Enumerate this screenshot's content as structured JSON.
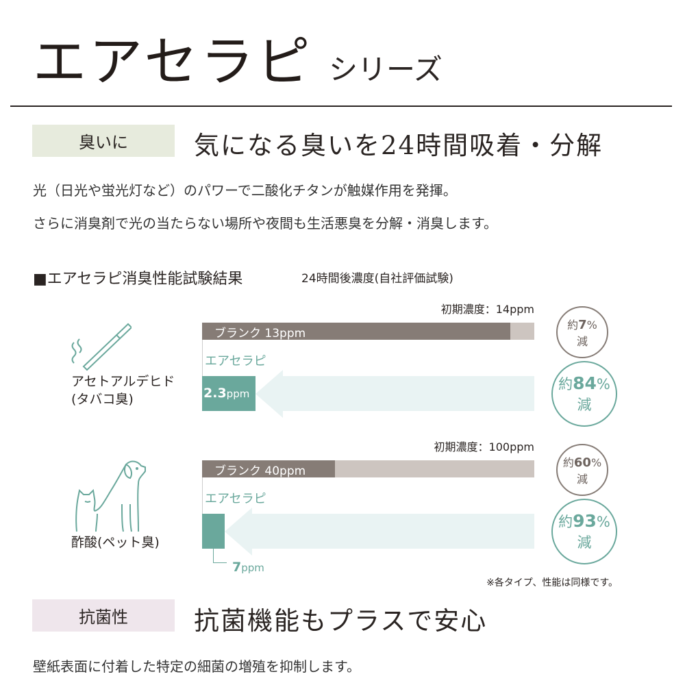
{
  "title": "エアセラピ",
  "title_suffix": "シリーズ",
  "section1": {
    "tag": "臭いに",
    "headline": "気になる臭いを24時間吸着・分解",
    "body": [
      "光（日光や蛍光灯など）のパワーで二酸化チタンが触媒作用を発揮。",
      "さらに消臭剤で光の当たらない場所や夜間も生活悪臭を分解・消臭します。"
    ]
  },
  "test": {
    "heading": "■エアセラピ消臭性能試験結果",
    "subheading": "24時間後濃度(自社評価試験)",
    "note": "※各タイプ、性能は同様です。",
    "items": [
      {
        "name": "アセトアルデヒド",
        "name_sub": "(タバコ臭)",
        "icon": "cigarette-icon",
        "initial": "初期濃度：14ppm",
        "initial_ppm": 14,
        "blank_label": "ブランク 13ppm",
        "blank_ppm": 13,
        "product_label": "エアセラピ",
        "product_value": "2.3",
        "product_unit": "ppm",
        "product_ppm": 2.3,
        "blank_reduction": {
          "prefix": "約",
          "value": "7",
          "unit": "%",
          "suffix": "減"
        },
        "product_reduction": {
          "prefix": "約",
          "value": "84",
          "unit": "%",
          "suffix": "減"
        }
      },
      {
        "name": "酢酸",
        "name_sub": "(ペット臭)",
        "icon": "dog-cat-icon",
        "initial": "初期濃度：100ppm",
        "initial_ppm": 100,
        "blank_label": "ブランク 40ppm",
        "blank_ppm": 40,
        "product_label": "エアセラピ",
        "product_value": "7",
        "product_unit": "ppm",
        "product_ppm": 7,
        "blank_reduction": {
          "prefix": "約",
          "value": "60",
          "unit": "%",
          "suffix": "減"
        },
        "product_reduction": {
          "prefix": "約",
          "value": "93",
          "unit": "%",
          "suffix": "減"
        }
      }
    ]
  },
  "section2": {
    "tag": "抗菌性",
    "headline": "抗菌機能もプラスで安心",
    "body": "壁紙表面に付着した特定の細菌の増殖を抑制します。"
  },
  "colors": {
    "blank": "#867c76",
    "blank_track": "#cdc5c0",
    "product": "#6aa89c",
    "arrow": "#e9f3f3",
    "tag1": "#e7ebdd",
    "tag2": "#efe6ec"
  }
}
